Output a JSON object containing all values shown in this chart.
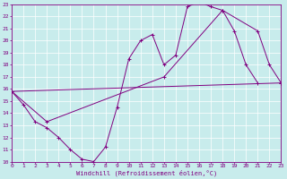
{
  "xlabel": "Windchill (Refroidissement éolien,°C)",
  "xlim": [
    0,
    23
  ],
  "ylim": [
    10,
    23
  ],
  "xticks": [
    0,
    1,
    2,
    3,
    4,
    5,
    6,
    7,
    8,
    9,
    10,
    11,
    12,
    13,
    14,
    15,
    16,
    17,
    18,
    19,
    20,
    21,
    22,
    23
  ],
  "yticks": [
    10,
    11,
    12,
    13,
    14,
    15,
    16,
    17,
    18,
    19,
    20,
    21,
    22,
    23
  ],
  "bg_color": "#c8ecec",
  "line_color": "#800080",
  "grid_color": "#b0d8d8",
  "line1_pts": [
    [
      0,
      15.8
    ],
    [
      1,
      14.7
    ],
    [
      2,
      13.3
    ],
    [
      3,
      12.8
    ],
    [
      4,
      12.0
    ],
    [
      5,
      11.0
    ],
    [
      6,
      10.2
    ],
    [
      7,
      10.0
    ],
    [
      8,
      11.2
    ],
    [
      9,
      14.5
    ],
    [
      10,
      18.5
    ],
    [
      11,
      20.0
    ],
    [
      12,
      20.5
    ],
    [
      13,
      18.0
    ],
    [
      14,
      18.8
    ],
    [
      15,
      22.8
    ],
    [
      16,
      23.2
    ],
    [
      17,
      22.8
    ],
    [
      18,
      22.5
    ],
    [
      19,
      20.8
    ],
    [
      20,
      18.0
    ],
    [
      21,
      16.5
    ]
  ],
  "line2_pts": [
    [
      0,
      15.8
    ],
    [
      23,
      16.5
    ]
  ],
  "line3_pts": [
    [
      0,
      15.8
    ],
    [
      3,
      13.3
    ],
    [
      13,
      17.0
    ],
    [
      18,
      22.5
    ],
    [
      21,
      20.8
    ],
    [
      22,
      18.0
    ],
    [
      23,
      16.5
    ]
  ]
}
